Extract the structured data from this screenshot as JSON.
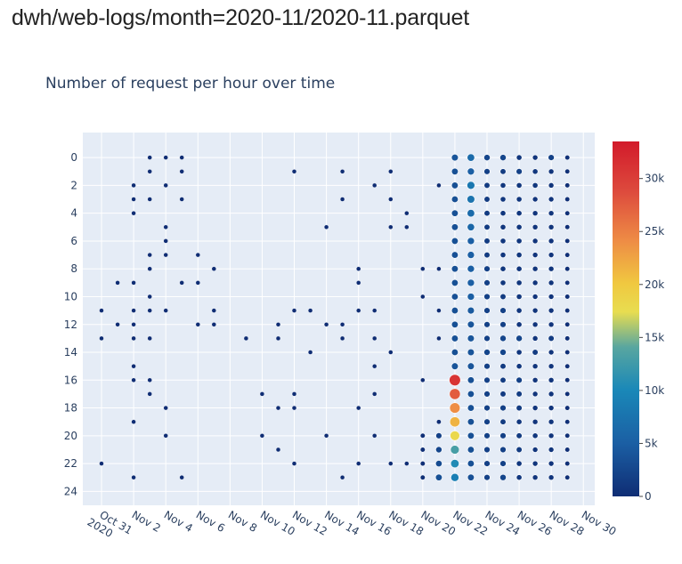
{
  "page": {
    "heading": "dwh/web-logs/month=2020-11/2020-11.parquet"
  },
  "chart_data": {
    "type": "scatter",
    "title": "Number of request per hour over time",
    "xlabel": "",
    "ylabel": "",
    "x_range": [
      "2020-10-29T20:00",
      "2020-11-30T17:00"
    ],
    "y_range": [
      25,
      -1.8
    ],
    "y_reversed": true,
    "grid": true,
    "legend": "none",
    "x_ticks": [
      {
        "date": "2020-10-31",
        "label": "Oct 31",
        "sublabel": "2020"
      },
      {
        "date": "2020-11-02",
        "label": "Nov 2"
      },
      {
        "date": "2020-11-04",
        "label": "Nov 4"
      },
      {
        "date": "2020-11-06",
        "label": "Nov 6"
      },
      {
        "date": "2020-11-08",
        "label": "Nov 8"
      },
      {
        "date": "2020-11-10",
        "label": "Nov 10"
      },
      {
        "date": "2020-11-12",
        "label": "Nov 12"
      },
      {
        "date": "2020-11-14",
        "label": "Nov 14"
      },
      {
        "date": "2020-11-16",
        "label": "Nov 16"
      },
      {
        "date": "2020-11-18",
        "label": "Nov 18"
      },
      {
        "date": "2020-11-20",
        "label": "Nov 20"
      },
      {
        "date": "2020-11-22",
        "label": "Nov 22"
      },
      {
        "date": "2020-11-24",
        "label": "Nov 24"
      },
      {
        "date": "2020-11-26",
        "label": "Nov 26"
      },
      {
        "date": "2020-11-28",
        "label": "Nov 28"
      },
      {
        "date": "2020-11-30",
        "label": "Nov 30"
      }
    ],
    "y_ticks": [
      0,
      2,
      4,
      6,
      8,
      10,
      12,
      14,
      16,
      18,
      20,
      22,
      24
    ],
    "colorbar": {
      "range": [
        0,
        33500
      ],
      "ticks": [
        {
          "v": 0,
          "label": "0"
        },
        {
          "v": 5000,
          "label": "5k"
        },
        {
          "v": 10000,
          "label": "10k"
        },
        {
          "v": 15000,
          "label": "15k"
        },
        {
          "v": 20000,
          "label": "20k"
        },
        {
          "v": 25000,
          "label": "25k"
        },
        {
          "v": 30000,
          "label": "30k"
        }
      ],
      "colorscale": [
        [
          0,
          "#0f2d74"
        ],
        [
          0.15,
          "#1b5fa4"
        ],
        [
          0.3,
          "#1a88b8"
        ],
        [
          0.42,
          "#58a6a0"
        ],
        [
          0.52,
          "#e8dd50"
        ],
        [
          0.6,
          "#f0c840"
        ],
        [
          0.72,
          "#ee8c45"
        ],
        [
          0.86,
          "#dd4a3d"
        ],
        [
          1,
          "#d21a2a"
        ]
      ]
    },
    "series": [
      {
        "x": "2020-10-31",
        "y": [
          11,
          13,
          22
        ],
        "v": [
          10,
          10,
          10
        ]
      },
      {
        "x": "2020-11-01",
        "y": [
          9,
          12
        ],
        "v": [
          10,
          10
        ]
      },
      {
        "x": "2020-11-02",
        "y": [
          2,
          3,
          4,
          9,
          11,
          12,
          13,
          15,
          16,
          19,
          23
        ],
        "v": [
          10,
          10,
          10,
          10,
          10,
          10,
          10,
          10,
          10,
          10,
          10
        ]
      },
      {
        "x": "2020-11-03",
        "y": [
          0,
          1,
          3,
          7,
          8,
          10,
          11,
          13,
          16,
          17
        ],
        "v": [
          10,
          10,
          10,
          10,
          10,
          10,
          10,
          10,
          10,
          10
        ]
      },
      {
        "x": "2020-11-04",
        "y": [
          0,
          2,
          5,
          6,
          7,
          11,
          18,
          20
        ],
        "v": [
          10,
          10,
          10,
          10,
          10,
          10,
          10,
          10
        ]
      },
      {
        "x": "2020-11-05",
        "y": [
          0,
          1,
          3,
          9,
          23
        ],
        "v": [
          10,
          10,
          10,
          10,
          10
        ]
      },
      {
        "x": "2020-11-06",
        "y": [
          7,
          9,
          12
        ],
        "v": [
          10,
          10,
          10
        ]
      },
      {
        "x": "2020-11-07",
        "y": [
          8,
          11,
          12
        ],
        "v": [
          10,
          10,
          10
        ]
      },
      {
        "x": "2020-11-09",
        "y": [
          13
        ],
        "v": [
          10
        ]
      },
      {
        "x": "2020-11-10",
        "y": [
          17,
          20
        ],
        "v": [
          10,
          10
        ]
      },
      {
        "x": "2020-11-11",
        "y": [
          12,
          13,
          18,
          21
        ],
        "v": [
          10,
          10,
          10,
          10
        ]
      },
      {
        "x": "2020-11-12",
        "y": [
          1,
          11,
          17,
          18,
          22
        ],
        "v": [
          10,
          10,
          10,
          10,
          10
        ]
      },
      {
        "x": "2020-11-13",
        "y": [
          11,
          14
        ],
        "v": [
          10,
          10
        ]
      },
      {
        "x": "2020-11-14",
        "y": [
          5,
          12,
          20
        ],
        "v": [
          10,
          10,
          10
        ]
      },
      {
        "x": "2020-11-15",
        "y": [
          1,
          3,
          12,
          13,
          23
        ],
        "v": [
          10,
          10,
          10,
          10,
          10
        ]
      },
      {
        "x": "2020-11-16",
        "y": [
          8,
          9,
          11,
          18,
          22
        ],
        "v": [
          10,
          10,
          10,
          10,
          10
        ]
      },
      {
        "x": "2020-11-17",
        "y": [
          2,
          11,
          13,
          15,
          17,
          20
        ],
        "v": [
          10,
          10,
          10,
          10,
          10,
          10
        ]
      },
      {
        "x": "2020-11-18",
        "y": [
          1,
          3,
          5,
          14,
          22
        ],
        "v": [
          10,
          10,
          10,
          10,
          10
        ]
      },
      {
        "x": "2020-11-19",
        "y": [
          4,
          5,
          22
        ],
        "v": [
          10,
          10,
          10
        ]
      },
      {
        "x": "2020-11-20",
        "y": [
          8,
          10,
          16,
          20,
          21,
          22,
          23
        ],
        "v": [
          10,
          10,
          10,
          300,
          300,
          300,
          300
        ]
      },
      {
        "x": "2020-11-21",
        "y": [
          2,
          8,
          11,
          13,
          19,
          20,
          21,
          22,
          23
        ],
        "v": [
          10,
          10,
          10,
          10,
          50,
          2000,
          2500,
          3000,
          3500
        ]
      },
      {
        "x": "2020-11-22",
        "y": [
          0,
          1,
          2,
          3,
          4,
          5,
          6,
          7,
          8,
          9,
          10,
          11,
          12,
          13,
          14,
          15,
          16,
          17,
          18,
          19,
          20,
          21,
          22,
          23
        ],
        "v": [
          4000,
          3500,
          3500,
          3500,
          3500,
          3500,
          3500,
          3500,
          3500,
          3500,
          3500,
          3500,
          3500,
          3500,
          3500,
          4000,
          31000,
          27500,
          24000,
          21500,
          18000,
          13000,
          10500,
          9000
        ]
      },
      {
        "x": "2020-11-23",
        "y": [
          0,
          1,
          2,
          3,
          4,
          5,
          6,
          7,
          8,
          9,
          10,
          11,
          12,
          13,
          14,
          15,
          16,
          17,
          18,
          19,
          20,
          21,
          22,
          23
        ],
        "v": [
          6500,
          5000,
          8000,
          7500,
          6500,
          6000,
          5000,
          5000,
          5000,
          5000,
          5000,
          4500,
          4000,
          4000,
          4000,
          4000,
          3500,
          3500,
          3500,
          3500,
          3500,
          3500,
          3500,
          3500
        ]
      },
      {
        "x": "2020-11-24",
        "y": [
          0,
          1,
          2,
          3,
          4,
          5,
          6,
          7,
          8,
          9,
          10,
          11,
          12,
          13,
          14,
          15,
          16,
          17,
          18,
          19,
          20,
          21,
          22,
          23
        ],
        "v": [
          2500,
          2000,
          1500,
          1500,
          1500,
          1500,
          1500,
          1500,
          2000,
          2000,
          2000,
          2000,
          2000,
          2000,
          2500,
          2000,
          2000,
          2000,
          2000,
          2000,
          2000,
          2000,
          2000,
          2000
        ]
      },
      {
        "x": "2020-11-25",
        "y": [
          0,
          1,
          2,
          3,
          4,
          5,
          6,
          7,
          8,
          9,
          10,
          11,
          12,
          13,
          14,
          15,
          16,
          17,
          18,
          19,
          20,
          21,
          22,
          23
        ],
        "v": [
          2500,
          1500,
          1000,
          1000,
          1000,
          1000,
          1000,
          1000,
          1000,
          1000,
          1500,
          2000,
          2000,
          2500,
          2500,
          1500,
          1500,
          1500,
          2000,
          1500,
          2000,
          2000,
          2000,
          2500
        ]
      },
      {
        "x": "2020-11-26",
        "y": [
          0,
          1,
          2,
          3,
          4,
          5,
          6,
          7,
          8,
          9,
          10,
          11,
          12,
          13,
          14,
          15,
          16,
          17,
          18,
          19,
          20,
          21,
          22,
          23
        ],
        "v": [
          1000,
          2000,
          1000,
          1000,
          1000,
          1000,
          1000,
          1000,
          1000,
          1000,
          1000,
          1000,
          1000,
          2500,
          1000,
          1000,
          2000,
          1500,
          1500,
          1000,
          1500,
          1500,
          1000,
          1000
        ]
      },
      {
        "x": "2020-11-27",
        "y": [
          0,
          1,
          2,
          3,
          4,
          5,
          6,
          7,
          8,
          9,
          10,
          11,
          12,
          13,
          14,
          15,
          16,
          17,
          18,
          19,
          20,
          21,
          22,
          23
        ],
        "v": [
          800,
          1000,
          1000,
          800,
          800,
          800,
          800,
          800,
          800,
          800,
          800,
          800,
          800,
          800,
          1500,
          800,
          800,
          800,
          800,
          800,
          1000,
          800,
          800,
          800
        ]
      },
      {
        "x": "2020-11-28",
        "y": [
          0,
          1,
          2,
          3,
          4,
          5,
          6,
          7,
          8,
          9,
          10,
          11,
          12,
          13,
          14,
          15,
          16,
          17,
          18,
          19,
          20,
          21,
          22,
          23
        ],
        "v": [
          2000,
          800,
          800,
          800,
          800,
          800,
          800,
          800,
          800,
          800,
          800,
          800,
          800,
          1500,
          800,
          800,
          800,
          800,
          800,
          800,
          800,
          800,
          800,
          800
        ]
      },
      {
        "x": "2020-11-29",
        "y": [
          0,
          1,
          2,
          3,
          4,
          5,
          6,
          7,
          8,
          9,
          10,
          11,
          12,
          13,
          14,
          15,
          16,
          17,
          18,
          19,
          20,
          21,
          22,
          23
        ],
        "v": [
          300,
          300,
          300,
          300,
          300,
          300,
          300,
          300,
          300,
          300,
          300,
          300,
          300,
          300,
          300,
          300,
          300,
          300,
          300,
          300,
          300,
          300,
          300,
          300
        ]
      }
    ]
  }
}
